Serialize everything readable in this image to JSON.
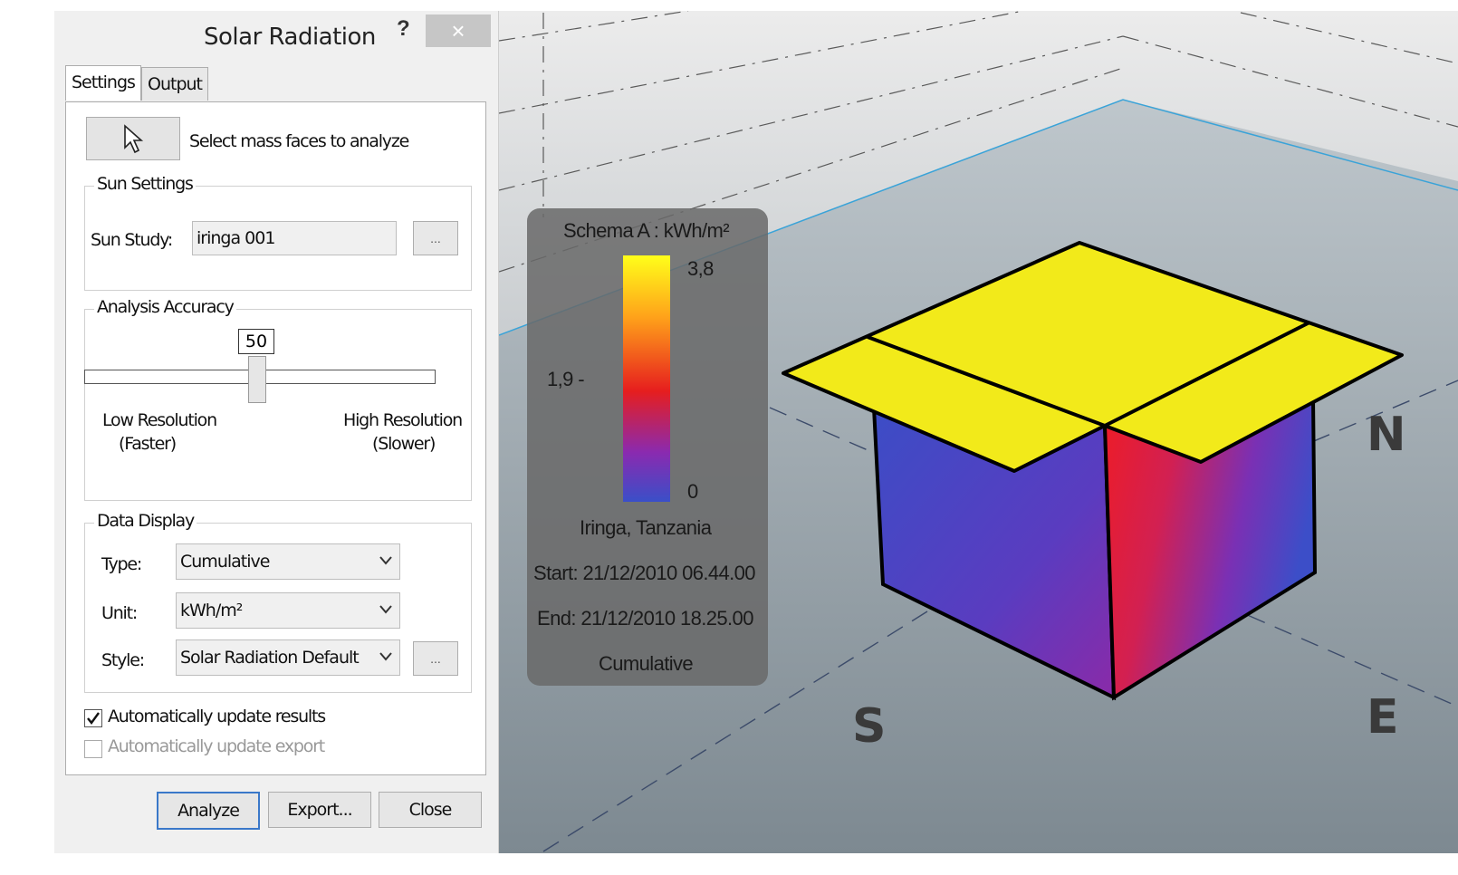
{
  "dialog": {
    "title": "Solar Radiation",
    "help": "?",
    "close": "×",
    "tabs": [
      "Settings",
      "Output"
    ],
    "select_faces_label": "Select mass faces to analyze",
    "sun_settings": {
      "title": "Sun Settings",
      "sun_study_label": "Sun Study:",
      "sun_study_value": "iringa 001",
      "browse": "..."
    },
    "accuracy": {
      "title": "Analysis Accuracy",
      "value": 50,
      "value_text": "50",
      "low_label": "Low  Resolution",
      "low_sub": "(Faster)",
      "high_label": "High Resolution",
      "high_sub": "(Slower)"
    },
    "data_display": {
      "title": "Data Display",
      "type_label": "Type:",
      "type_value": "Cumulative",
      "unit_label": "Unit:",
      "unit_value": "kWh/m²",
      "style_label": "Style:",
      "style_value": "Solar Radiation Default",
      "browse": "..."
    },
    "auto_update_results": {
      "label": "Automatically update results",
      "checked": true
    },
    "auto_update_export": {
      "label": "Automatically update export",
      "checked": false
    },
    "buttons": {
      "analyze": "Analyze",
      "export": "Export...",
      "close": "Close"
    }
  },
  "legend": {
    "title": "Schema A : kWh/m²",
    "max": "3,8",
    "mid": "1,9 -",
    "min": "0",
    "location": "Iringa, Tanzania",
    "start": "Start: 21/12/2010 06.44.00",
    "end": "End: 21/12/2010 18.25.00",
    "type": "Cumulative"
  },
  "compass": {
    "n": "N",
    "s": "S",
    "e": "E"
  },
  "colors": {
    "roof": "#f2ea1a",
    "ramp_top": "#ffff1a",
    "ramp_mid": "#e61e1e",
    "ramp_bottom": "#3a4fc8",
    "ground": "#9fabb3"
  }
}
